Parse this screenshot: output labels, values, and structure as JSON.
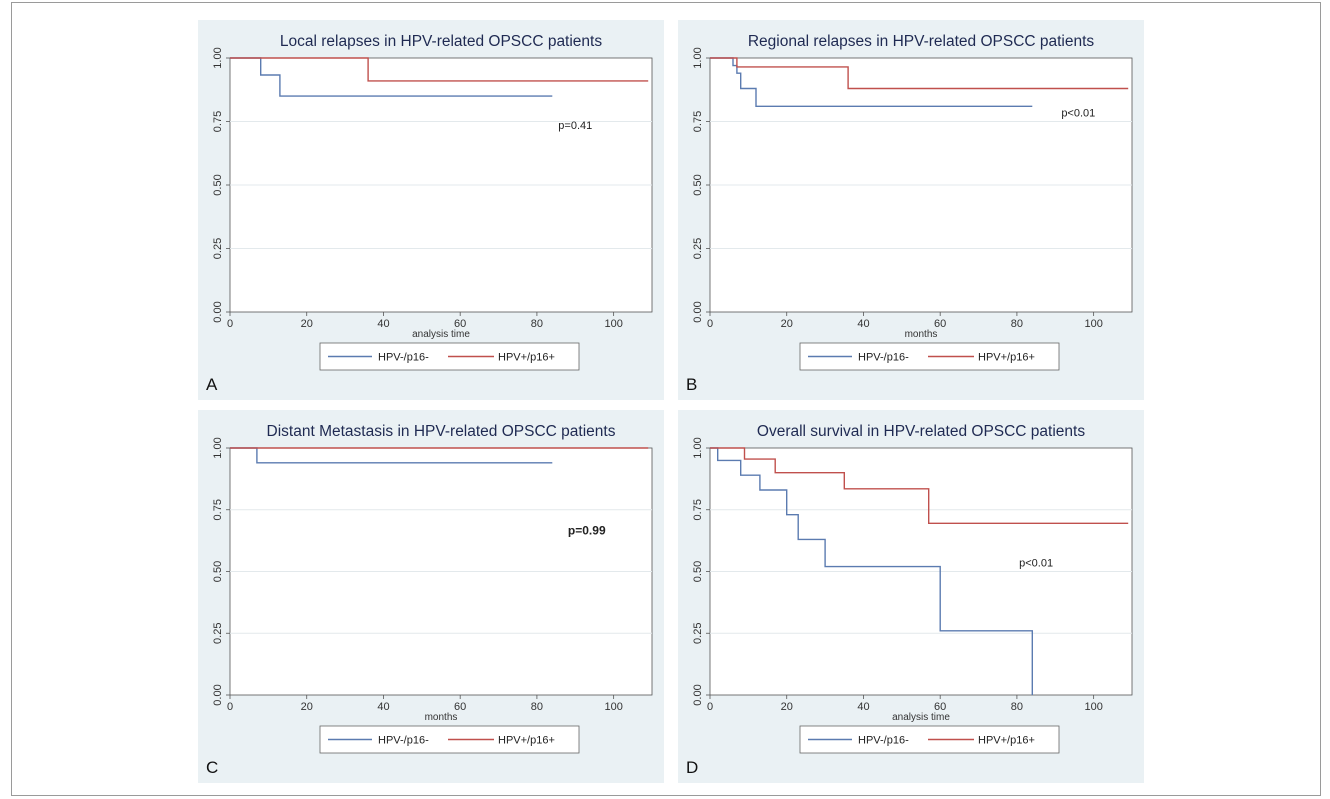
{
  "chart_data": [
    {
      "type": "line",
      "panel_letter": "A",
      "title": "Local relapses in HPV-related OPSCC patients",
      "xlabel": "analysis time",
      "ylabel": "",
      "xlim": [
        0,
        110
      ],
      "ylim": [
        0,
        1
      ],
      "x_ticks": [
        "0",
        "20",
        "40",
        "60",
        "80",
        "100"
      ],
      "y_ticks": [
        "0.00",
        "0.25",
        "0.50",
        "0.75",
        "1.00"
      ],
      "grid": "horizontal",
      "legend": "bottom",
      "annotation": {
        "text": "p=0.41",
        "x": 90,
        "y": 0.72,
        "bold": false
      },
      "series": [
        {
          "name": "HPV-/p16-",
          "color": "#5b7bb0",
          "x": [
            0,
            8,
            8,
            13,
            13,
            84
          ],
          "y": [
            1,
            1,
            0.933,
            0.933,
            0.85,
            0.85
          ]
        },
        {
          "name": "HPV+/p16+",
          "color": "#c0504d",
          "x": [
            0,
            36,
            36,
            109
          ],
          "y": [
            1,
            1,
            0.91,
            0.91
          ]
        }
      ]
    },
    {
      "type": "line",
      "panel_letter": "B",
      "title": "Regional relapses in HPV-related OPSCC patients",
      "xlabel": "months",
      "ylabel": "",
      "xlim": [
        0,
        110
      ],
      "ylim": [
        0,
        1
      ],
      "x_ticks": [
        "0",
        "20",
        "40",
        "60",
        "80",
        "100"
      ],
      "y_ticks": [
        "0.00",
        "0.25",
        "0.50",
        "0.75",
        "1.00"
      ],
      "grid": "horizontal",
      "legend": "bottom",
      "annotation": {
        "text": "p<0.01",
        "x": 96,
        "y": 0.77,
        "bold": false
      },
      "series": [
        {
          "name": "HPV-/p16-",
          "color": "#5b7bb0",
          "x": [
            0,
            6,
            6,
            7,
            7,
            8,
            8,
            12,
            12,
            84
          ],
          "y": [
            1,
            1,
            0.97,
            0.97,
            0.94,
            0.94,
            0.88,
            0.88,
            0.81,
            0.81
          ]
        },
        {
          "name": "HPV+/p16+",
          "color": "#c0504d",
          "x": [
            0,
            7,
            7,
            36,
            36,
            109
          ],
          "y": [
            1,
            1,
            0.965,
            0.965,
            0.88,
            0.88
          ]
        }
      ]
    },
    {
      "type": "line",
      "panel_letter": "C",
      "title": "Distant Metastasis in HPV-related OPSCC patients",
      "xlabel": "months",
      "ylabel": "",
      "xlim": [
        0,
        110
      ],
      "ylim": [
        0,
        1
      ],
      "x_ticks": [
        "0",
        "20",
        "40",
        "60",
        "80",
        "100"
      ],
      "y_ticks": [
        "0.00",
        "0.25",
        "0.50",
        "0.75",
        "1.00"
      ],
      "grid": "horizontal",
      "legend": "bottom",
      "annotation": {
        "text": "p=0.99",
        "x": 93,
        "y": 0.65,
        "bold": true
      },
      "series": [
        {
          "name": "HPV-/p16-",
          "color": "#5b7bb0",
          "x": [
            0,
            7,
            7,
            84
          ],
          "y": [
            1,
            1,
            0.94,
            0.94
          ]
        },
        {
          "name": "HPV+/p16+",
          "color": "#c0504d",
          "x": [
            0,
            109
          ],
          "y": [
            1,
            1
          ]
        }
      ]
    },
    {
      "type": "line",
      "panel_letter": "D",
      "title": "Overall survival in HPV-related OPSCC patients",
      "xlabel": "analysis time",
      "ylabel": "",
      "xlim": [
        0,
        110
      ],
      "ylim": [
        0,
        1
      ],
      "x_ticks": [
        "0",
        "20",
        "40",
        "60",
        "80",
        "100"
      ],
      "y_ticks": [
        "0.00",
        "0.25",
        "0.50",
        "0.75",
        "1.00"
      ],
      "grid": "horizontal",
      "legend": "bottom",
      "annotation": {
        "text": "p<0.01",
        "x": 85,
        "y": 0.52,
        "bold": false
      },
      "series": [
        {
          "name": "HPV-/p16-",
          "color": "#5b7bb0",
          "x": [
            0,
            2,
            2,
            8,
            8,
            13,
            13,
            20,
            20,
            23,
            23,
            30,
            30,
            60,
            60,
            84,
            84
          ],
          "y": [
            1,
            1,
            0.95,
            0.95,
            0.89,
            0.89,
            0.83,
            0.83,
            0.73,
            0.73,
            0.63,
            0.63,
            0.52,
            0.52,
            0.26,
            0.26,
            0
          ]
        },
        {
          "name": "HPV+/p16+",
          "color": "#c0504d",
          "x": [
            0,
            9,
            9,
            17,
            17,
            35,
            35,
            57,
            57,
            109
          ],
          "y": [
            1,
            1,
            0.955,
            0.955,
            0.9,
            0.9,
            0.835,
            0.835,
            0.695,
            0.695
          ]
        }
      ]
    }
  ]
}
